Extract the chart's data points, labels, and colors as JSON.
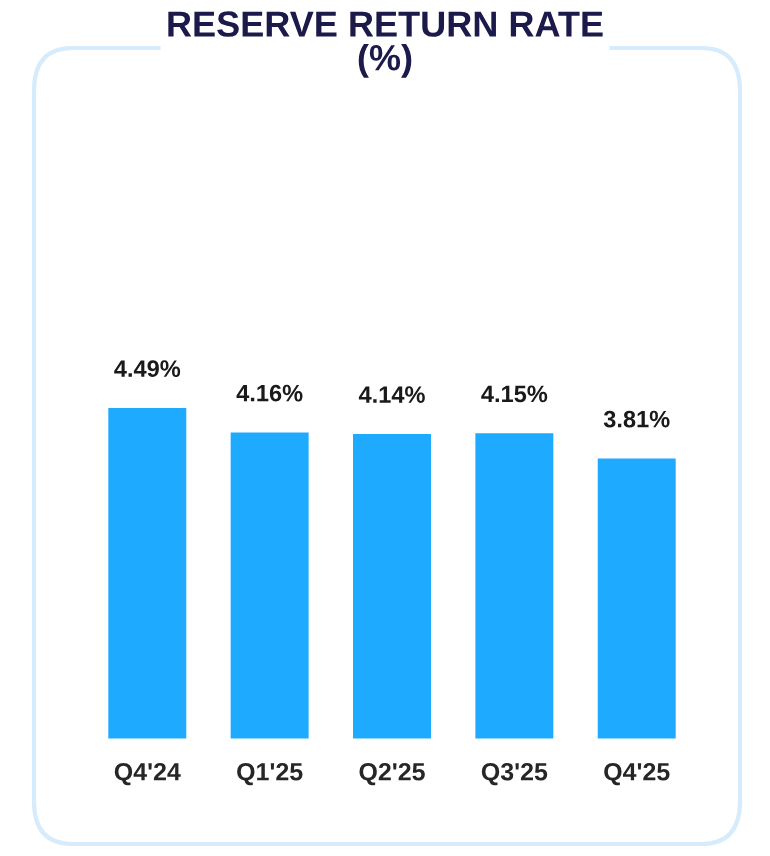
{
  "chart_data": {
    "type": "bar",
    "title": "RESERVE RETURN RATE\n(%)",
    "categories": [
      "Q4'24",
      "Q1'25",
      "Q2'25",
      "Q3'25",
      "Q4'25"
    ],
    "values": [
      4.49,
      4.16,
      4.14,
      4.15,
      3.81
    ],
    "value_labels": [
      "4.49%",
      "4.16%",
      "4.14%",
      "4.15%",
      "3.81%"
    ],
    "color": "#1eaaff"
  }
}
